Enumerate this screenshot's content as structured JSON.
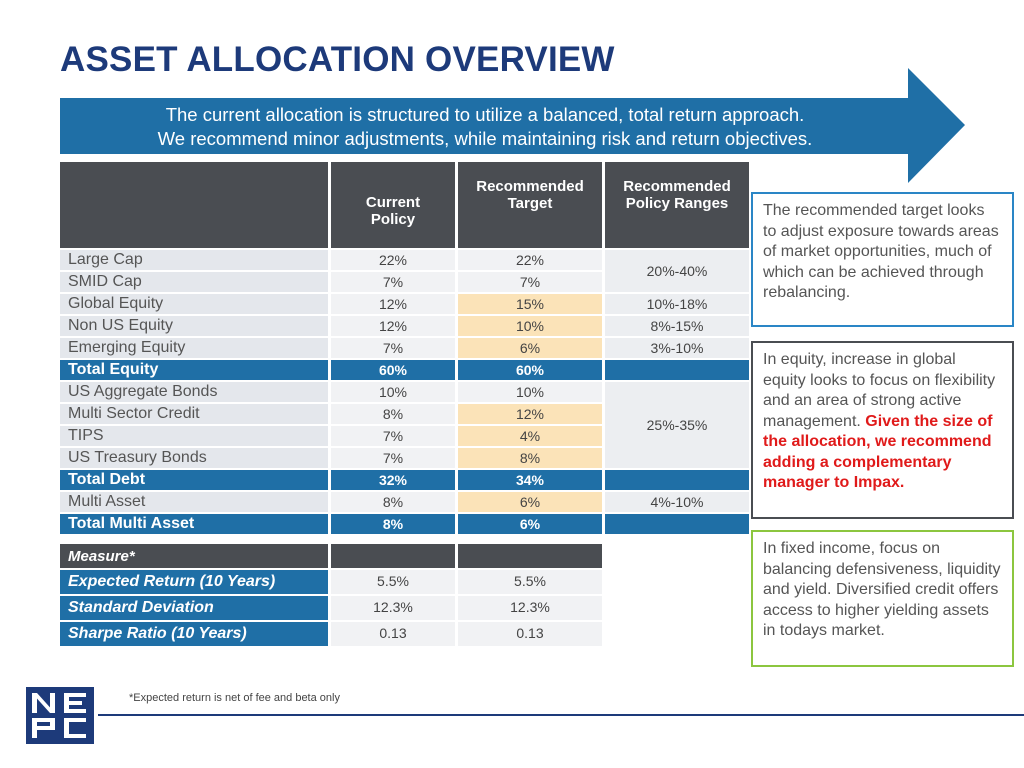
{
  "title": "ASSET ALLOCATION OVERVIEW",
  "banner": {
    "line1": "The current allocation is structured to utilize a balanced, total return approach.",
    "line2": "We recommend minor adjustments, while maintaining risk and return objectives."
  },
  "colors": {
    "navy": "#1d3a7a",
    "blue": "#1f6fa6",
    "highlight": "#fbe3b8",
    "dark_header": "#4a4d52"
  },
  "table": {
    "headers": {
      "current_line1": "Current",
      "current_line2": "Policy",
      "target_line1": "Recommended",
      "target_line2": "Target",
      "ranges_line1": "Recommended",
      "ranges_line2": "Policy Ranges"
    },
    "rows": [
      {
        "label": "Large Cap",
        "current": "22%",
        "target": "22%"
      },
      {
        "label": "SMID Cap",
        "current": "7%",
        "target": "7%"
      },
      {
        "label": "Global Equity",
        "current": "12%",
        "target": "15%",
        "range": "10%-18%"
      },
      {
        "label": "Non US Equity",
        "current": "12%",
        "target": "10%",
        "range": "8%-15%"
      },
      {
        "label": "Emerging Equity",
        "current": "7%",
        "target": "6%",
        "range": "3%-10%"
      },
      {
        "label": "Total Equity",
        "current": "60%",
        "target": "60%"
      },
      {
        "label": "US Aggregate Bonds",
        "current": "10%",
        "target": "10%"
      },
      {
        "label": "Multi Sector Credit",
        "current": "8%",
        "target": "12%"
      },
      {
        "label": "TIPS",
        "current": "7%",
        "target": "4%"
      },
      {
        "label": "US Treasury Bonds",
        "current": "7%",
        "target": "8%"
      },
      {
        "label": "Total Debt",
        "current": "32%",
        "target": "34%"
      },
      {
        "label": "Multi Asset",
        "current": "8%",
        "target": "6%",
        "range": "4%-10%"
      },
      {
        "label": "Total Multi Asset",
        "current": "8%",
        "target": "6%"
      }
    ],
    "range_large_smid": "20%-40%",
    "range_debt": "25%-35%",
    "measure_header": "Measure*",
    "measures": [
      {
        "label": "Expected Return (10 Years)",
        "current": "5.5%",
        "target": "5.5%"
      },
      {
        "label": "Standard Deviation",
        "current": "12.3%",
        "target": "12.3%"
      },
      {
        "label": "Sharpe Ratio (10 Years)",
        "current": "0.13",
        "target": "0.13"
      }
    ]
  },
  "notes": {
    "note1": "The recommended target looks to adjust exposure towards areas of market opportunities, much of which can be achieved through rebalancing.",
    "note2_plain": "In equity, increase in global equity looks to focus on flexibility and an area of strong active management.",
    "note2_red": "Given the size of the allocation, we recommend adding a complementary manager to Impax.",
    "note3": "In fixed income, focus on balancing defensiveness, liquidity and yield. Diversified credit offers access to higher yielding assets in todays market."
  },
  "footnote": "*Expected return is net of fee and beta only",
  "logo": {
    "text": "NEPC",
    "icon": "nepc-logo"
  }
}
